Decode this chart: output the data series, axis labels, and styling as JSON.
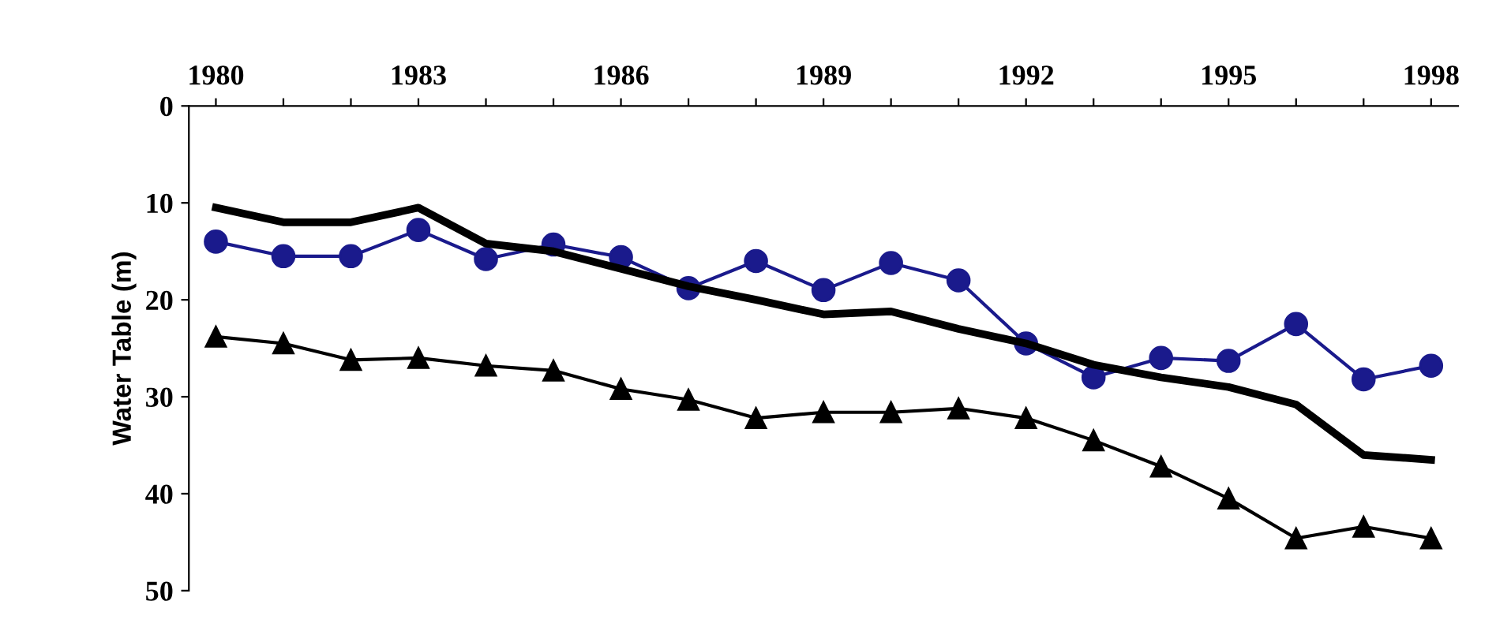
{
  "chart_data": {
    "type": "line",
    "ylabel": "Water Table (m)",
    "x": [
      1980,
      1981,
      1982,
      1983,
      1984,
      1985,
      1986,
      1987,
      1988,
      1989,
      1990,
      1991,
      1992,
      1993,
      1994,
      1995,
      1996,
      1997,
      1998
    ],
    "series": [
      {
        "color": "#1a1a8c",
        "marker": "circle",
        "line_style": "solid",
        "values": [
          14,
          15.5,
          15.5,
          12.8,
          15.8,
          14.3,
          15.6,
          18.8,
          16,
          19,
          16.2,
          18,
          24.5,
          28,
          26,
          26.3,
          22.5,
          28.2,
          26.8
        ]
      },
      {
        "color": "#000000",
        "marker": "none",
        "line_style": "solid",
        "values": [
          10.5,
          12,
          12,
          10.5,
          14.2,
          15,
          16.8,
          18.6,
          20,
          21.5,
          21.2,
          23,
          24.5,
          26.7,
          28,
          29,
          30.8,
          36,
          36.5
        ]
      },
      {
        "color": "#000000",
        "marker": "triangle",
        "line_style": "solid",
        "values": [
          23.8,
          24.5,
          26.2,
          26,
          26.8,
          27.3,
          29.2,
          30.3,
          32.2,
          31.6,
          31.6,
          31.2,
          32.2,
          34.5,
          37.2,
          40.5,
          44.6,
          43.4,
          44.6
        ]
      }
    ],
    "xlim": [
      1979.6,
      1998.4
    ],
    "xticks": [
      1980,
      {
        "value": 1981,
        "label": null
      },
      {
        "value": 1982,
        "label": null
      },
      1983,
      {
        "value": 1984,
        "label": null
      },
      {
        "value": 1985,
        "label": null
      },
      1986,
      {
        "value": 1987,
        "label": null
      },
      {
        "value": 1988,
        "label": null
      },
      1989,
      {
        "value": 1990,
        "label": null
      },
      {
        "value": 1991,
        "label": null
      },
      1992,
      {
        "value": 1993,
        "label": null
      },
      {
        "value": 1994,
        "label": null
      },
      1995,
      {
        "value": 1996,
        "label": null
      },
      {
        "value": 1997,
        "label": null
      },
      1998
    ],
    "ylim": [
      50,
      0
    ],
    "yticks": [
      0,
      10,
      20,
      30,
      40,
      50
    ],
    "grid": false
  }
}
